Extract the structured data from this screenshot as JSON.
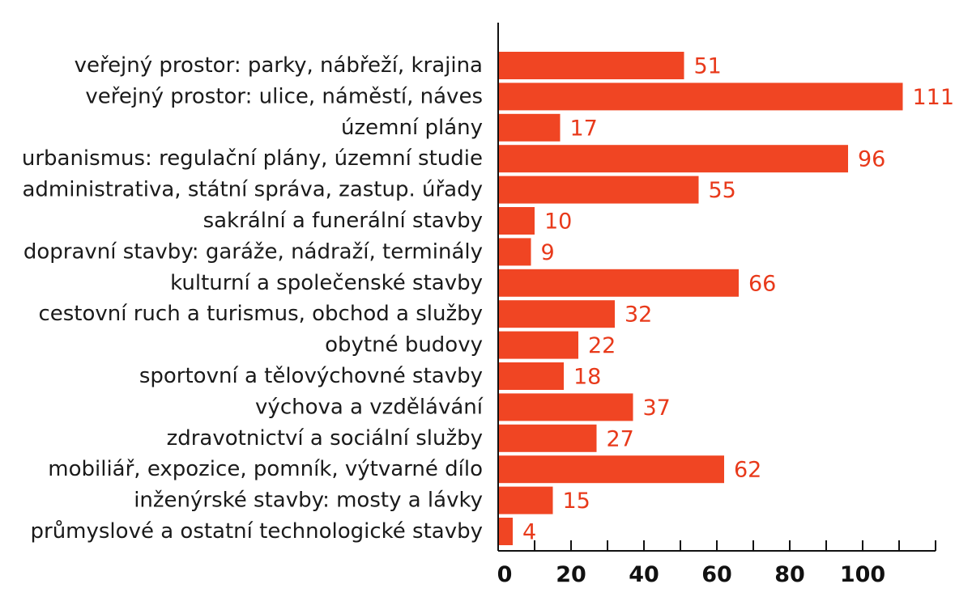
{
  "chart_data": {
    "type": "bar",
    "orientation": "horizontal",
    "title": "",
    "xlabel": "",
    "ylabel": "",
    "categories": [
      "veřejný prostor: parky, nábřeží, krajina",
      "veřejný prostor: ulice, náměstí, náves",
      "územní plány",
      "urbanismus: regulační plány, územní studie",
      "administrativa, státní správa, zastup. úřady",
      "sakrální a funerální stavby",
      "dopravní stavby: garáže, nádraží, terminály",
      "kulturní a společenské stavby",
      "cestovní ruch a turismus, obchod a služby",
      "obytné budovy",
      "sportovní a tělovýchovné stavby",
      "výchova a vzdělávání",
      "zdravotnictví a sociální služby",
      "mobiliář, expozice, pomník, výtvarné dílo",
      "inženýrské stavby: mosty a lávky",
      "průmyslové a ostatní technologické stavby"
    ],
    "values": [
      51,
      111,
      17,
      96,
      55,
      10,
      9,
      66,
      32,
      22,
      18,
      37,
      27,
      62,
      15,
      4
    ],
    "xlim": [
      0,
      120
    ],
    "x_ticks": [
      0,
      20,
      40,
      60,
      80,
      100
    ],
    "grid": false,
    "legend": "none",
    "colors": {
      "bar": "#f04523",
      "value_label": "#e8391a",
      "axis": "#111111",
      "category_text": "#1a1a1a"
    }
  }
}
